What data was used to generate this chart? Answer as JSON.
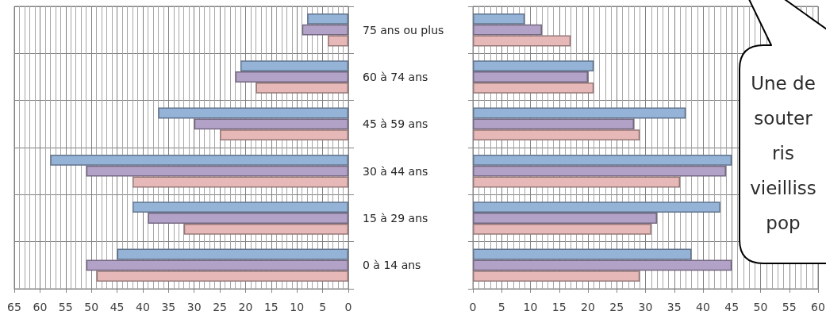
{
  "chart_data": [
    {
      "type": "bar",
      "orientation": "horizontal",
      "categories": [
        "75 ans ou plus",
        "60 à 74 ans",
        "45 à 59 ans",
        "30 à 44 ans",
        "15 à 29 ans",
        "0 à 14 ans"
      ],
      "series": [
        {
          "color": "#95b3d7",
          "values": [
            8,
            21,
            37,
            58,
            42,
            45
          ]
        },
        {
          "color": "#b3a2c7",
          "values": [
            9,
            22,
            30,
            51,
            39,
            51
          ]
        },
        {
          "color": "#e6b9b8",
          "values": [
            4,
            18,
            25,
            42,
            32,
            49
          ]
        }
      ],
      "xlim": [
        65,
        0
      ],
      "xticks": [
        65,
        60,
        55,
        50,
        45,
        40,
        35,
        30,
        25,
        20,
        15,
        10,
        5,
        0
      ],
      "grid": true
    },
    {
      "type": "bar",
      "orientation": "horizontal",
      "categories": [
        null,
        null,
        null,
        null,
        null,
        null
      ],
      "series": [
        {
          "color": "#95b3d7",
          "values": [
            9,
            21,
            37,
            45,
            43,
            38
          ]
        },
        {
          "color": "#b3a2c7",
          "values": [
            12,
            20,
            28,
            44,
            32,
            45
          ]
        },
        {
          "color": "#e6b9b8",
          "values": [
            17,
            21,
            29,
            36,
            31,
            29
          ]
        }
      ],
      "xlim": [
        0,
        60
      ],
      "xticks": [
        0,
        5,
        10,
        15,
        20,
        25,
        30,
        35,
        40,
        45,
        50,
        55,
        60
      ],
      "grid": true,
      "annotations": [
        "Une de\nsouter\nris\nvieilliss\npop"
      ]
    }
  ]
}
